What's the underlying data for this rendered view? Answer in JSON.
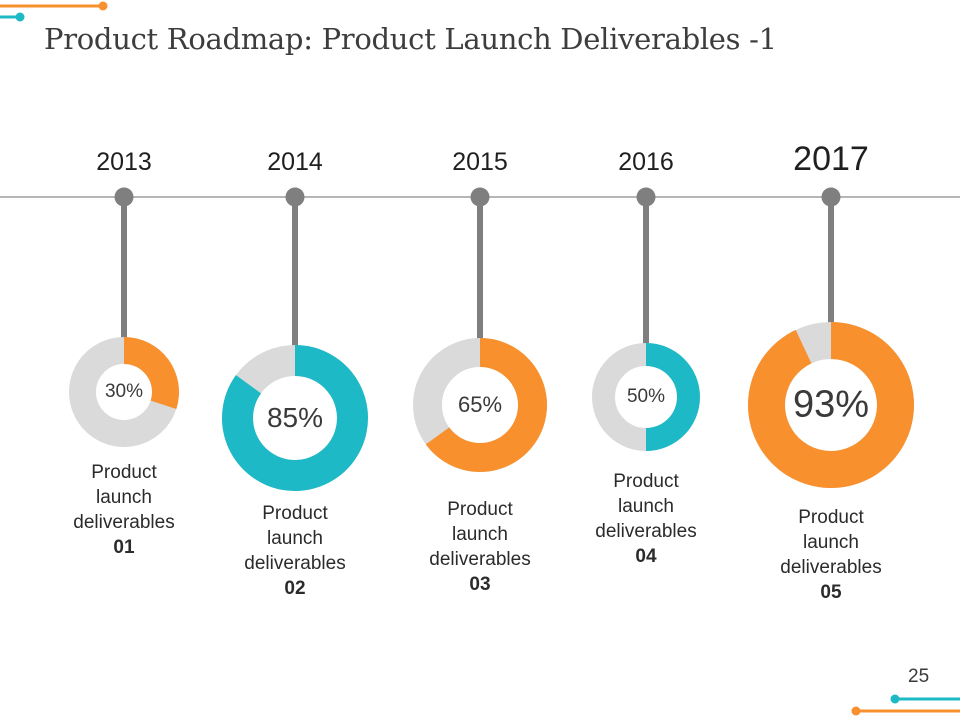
{
  "title": "Product Roadmap: Product Launch Deliverables -1",
  "page_number": "25",
  "colors": {
    "orange": "#f7902d",
    "teal": "#1db9c7",
    "gray": "#dadada",
    "stem": "#7f7f7f",
    "line": "#8a8a8a"
  },
  "milestones": [
    {
      "year": "2013",
      "percent": 30,
      "percent_label": "30%",
      "color": "orange",
      "label_lines": [
        "Product",
        "launch",
        "deliverables"
      ],
      "number": "01"
    },
    {
      "year": "2014",
      "percent": 85,
      "percent_label": "85%",
      "color": "teal",
      "label_lines": [
        "Product",
        "launch",
        "deliverables"
      ],
      "number": "02"
    },
    {
      "year": "2015",
      "percent": 65,
      "percent_label": "65%",
      "color": "orange",
      "label_lines": [
        "Product",
        "launch",
        "deliverables"
      ],
      "number": "03"
    },
    {
      "year": "2016",
      "percent": 50,
      "percent_label": "50%",
      "color": "teal",
      "label_lines": [
        "Product",
        "launch",
        "deliverables"
      ],
      "number": "04"
    },
    {
      "year": "2017",
      "percent": 93,
      "percent_label": "93%",
      "color": "orange",
      "label_lines": [
        "Product",
        "launch",
        "deliverables"
      ],
      "number": "05"
    }
  ]
}
